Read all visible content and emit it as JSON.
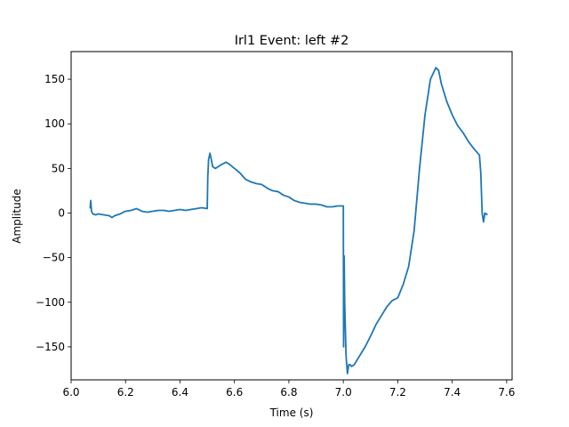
{
  "chart_data": {
    "type": "line",
    "title": "Irl1 Event: left #2",
    "xlabel": "Time (s)",
    "ylabel": "Amplitude",
    "xlim": [
      6.0,
      7.62
    ],
    "ylim": [
      -187,
      181
    ],
    "x_ticks": [
      6.0,
      6.2,
      6.4,
      6.6,
      6.8,
      7.0,
      7.2,
      7.4,
      7.6
    ],
    "x_tick_labels": [
      "6.0",
      "6.2",
      "6.4",
      "6.6",
      "6.8",
      "7.0",
      "7.2",
      "7.4",
      "7.6"
    ],
    "y_ticks": [
      -150,
      -100,
      -50,
      0,
      50,
      100,
      150
    ],
    "y_tick_labels": [
      "−150",
      "−100",
      "−50",
      "0",
      "50",
      "100",
      "150"
    ],
    "grid": false,
    "line_color": "#1f77b4",
    "series": [
      {
        "x": [
          6.07,
          6.072,
          6.075,
          6.08,
          6.09,
          6.1,
          6.12,
          6.14,
          6.15,
          6.16,
          6.18,
          6.2,
          6.22,
          6.24,
          6.26,
          6.28,
          6.3,
          6.32,
          6.34,
          6.36,
          6.38,
          6.4,
          6.42,
          6.44,
          6.46,
          6.48,
          6.5,
          6.502,
          6.505,
          6.51,
          6.515,
          6.52,
          6.53,
          6.55,
          6.57,
          6.58,
          6.6,
          6.62,
          6.64,
          6.66,
          6.68,
          6.7,
          6.72,
          6.74,
          6.76,
          6.78,
          6.8,
          6.82,
          6.84,
          6.86,
          6.88,
          6.9,
          6.92,
          6.94,
          6.96,
          6.98,
          6.995,
          7.0,
          7.001,
          7.003,
          7.005,
          7.01,
          7.015,
          7.02,
          7.025,
          7.03,
          7.04,
          7.06,
          7.08,
          7.1,
          7.12,
          7.14,
          7.16,
          7.18,
          7.2,
          7.22,
          7.24,
          7.26,
          7.28,
          7.3,
          7.32,
          7.34,
          7.35,
          7.36,
          7.38,
          7.4,
          7.42,
          7.44,
          7.46,
          7.48,
          7.5,
          7.505,
          7.51,
          7.515,
          7.52,
          7.53
        ],
        "y": [
          5,
          14,
          2,
          -1,
          -2,
          -1,
          -2,
          -3,
          -5,
          -3,
          -1,
          2,
          3,
          5,
          2,
          1,
          2,
          3,
          3,
          2,
          3,
          4,
          3,
          4,
          5,
          6,
          5,
          40,
          60,
          67,
          60,
          52,
          50,
          54,
          57,
          55,
          50,
          45,
          38,
          35,
          33,
          32,
          28,
          25,
          24,
          20,
          18,
          14,
          12,
          11,
          10,
          10,
          9,
          7,
          7,
          8,
          8,
          8,
          -150,
          -48,
          -100,
          -160,
          -180,
          -170,
          -170,
          -172,
          -170,
          -160,
          -150,
          -138,
          -125,
          -115,
          -105,
          -98,
          -95,
          -80,
          -60,
          -20,
          50,
          110,
          150,
          163,
          160,
          145,
          125,
          110,
          98,
          90,
          80,
          72,
          65,
          45,
          0,
          -10,
          0,
          -2
        ]
      }
    ]
  }
}
